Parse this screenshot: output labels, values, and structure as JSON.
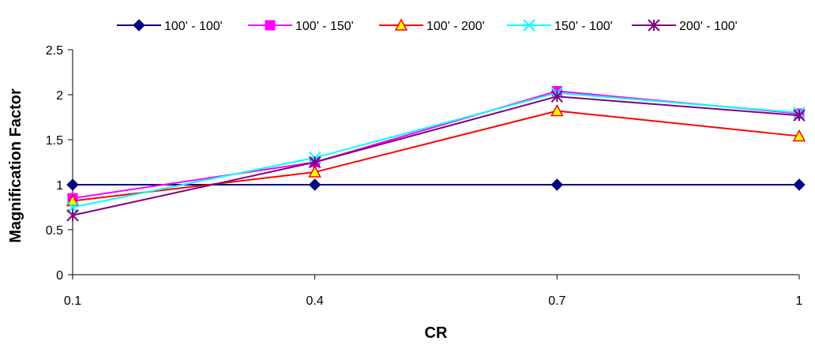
{
  "chart_data": {
    "type": "line",
    "x": [
      0.1,
      0.4,
      0.7,
      1
    ],
    "x_tick_labels": [
      "0.1",
      "0.4",
      "0.7",
      "1"
    ],
    "y_tick_labels": [
      "0",
      "0.5",
      "1",
      "1.5",
      "2",
      "2.5"
    ],
    "y_ticks": [
      0,
      0.5,
      1,
      1.5,
      2,
      2.5
    ],
    "ylim": [
      0,
      2.5
    ],
    "xlabel": "CR",
    "ylabel": "Magnification Factor",
    "grid": false,
    "legend_position": "top",
    "series": [
      {
        "name": "100' - 100'",
        "values": [
          1.0,
          1.0,
          1.0,
          1.0
        ],
        "color": "#000080",
        "marker": "diamond"
      },
      {
        "name": "100' - 150'",
        "values": [
          0.85,
          1.25,
          2.04,
          1.79
        ],
        "color": "#ff00ff",
        "marker": "square"
      },
      {
        "name": "100' - 200'",
        "values": [
          0.82,
          1.14,
          1.82,
          1.54
        ],
        "color": "#ff0000",
        "marker": "triangle"
      },
      {
        "name": "150' - 100'",
        "values": [
          0.75,
          1.3,
          2.02,
          1.8
        ],
        "color": "#00ffff",
        "marker": "x"
      },
      {
        "name": "200' - 100'",
        "values": [
          0.66,
          1.25,
          1.98,
          1.77
        ],
        "color": "#800080",
        "marker": "asterisk"
      }
    ]
  }
}
